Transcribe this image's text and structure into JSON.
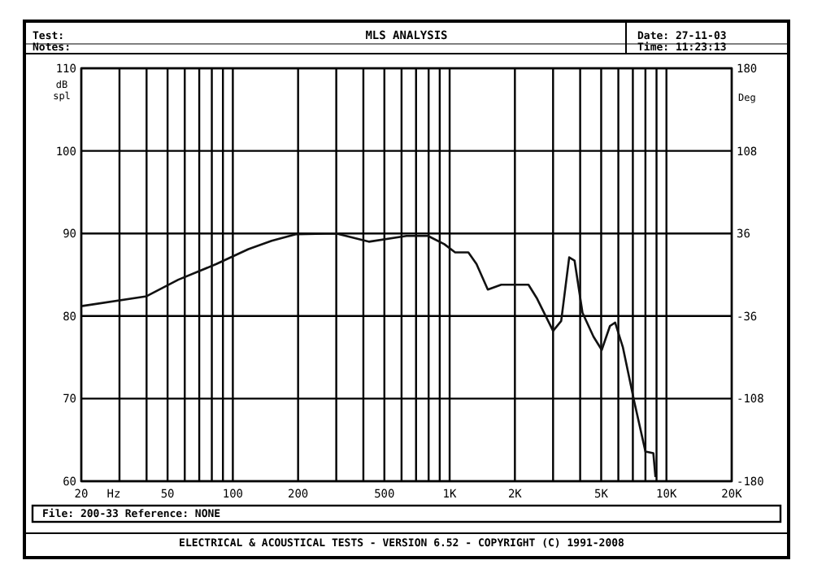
{
  "chart_data": {
    "type": "line",
    "title": "MLS ANALYSIS",
    "xlabel": "Hz",
    "ylabel": "dB spl",
    "y2label": "Deg",
    "annotations": [
      "Test:",
      "Notes:",
      "Date: 27-11-03",
      "Time: 11:23:13",
      "File: 200-33     Reference: NONE",
      "ELECTRICAL & ACOUSTICAL TESTS  -  VERSION 6.52  -  COPYRIGHT (C) 1991-2008"
    ],
    "log": "x",
    "grid": true,
    "line_style": "solid",
    "xlim": [
      20,
      20000
    ],
    "xticks": [
      20,
      {
        "value": 30,
        "label": null
      },
      {
        "value": 40,
        "label": null
      },
      50,
      {
        "value": 60,
        "label": null
      },
      {
        "value": 70,
        "label": null
      },
      {
        "value": 80,
        "label": null
      },
      {
        "value": 90,
        "label": null
      },
      100,
      200,
      {
        "value": 300,
        "label": null
      },
      {
        "value": 400,
        "label": null
      },
      500,
      {
        "value": 600,
        "label": null
      },
      {
        "value": 700,
        "label": null
      },
      {
        "value": 800,
        "label": null
      },
      {
        "value": 900,
        "label": null
      },
      {
        "value": 1000,
        "label": "1K"
      },
      {
        "value": 2000,
        "label": "2K"
      },
      {
        "value": 3000,
        "label": null
      },
      {
        "value": 4000,
        "label": null
      },
      {
        "value": 5000,
        "label": "5K"
      },
      {
        "value": 6000,
        "label": null
      },
      {
        "value": 7000,
        "label": null
      },
      {
        "value": 8000,
        "label": null
      },
      {
        "value": 9000,
        "label": null
      },
      {
        "value": 10000,
        "label": "10K"
      },
      {
        "value": 20000,
        "label": "20K"
      }
    ],
    "ylim": [
      60,
      110
    ],
    "yticks": [
      60,
      70,
      80,
      90,
      100,
      110
    ],
    "y2lim": [
      -180,
      180
    ],
    "y2ticks": [
      -180,
      -108,
      -36,
      36,
      108,
      180
    ],
    "series": [
      {
        "color": "#111111",
        "x": [
          20,
          40,
          56,
          84,
          118,
          151,
          195,
          300,
          424,
          632,
          795,
          945,
          1060,
          1220,
          1330,
          1500,
          1730,
          2310,
          2520,
          3000,
          3270,
          3560,
          3770,
          4100,
          4610,
          5030,
          5490,
          5800,
          6300,
          7110,
          8000,
          8700,
          8900
        ],
        "values": [
          81.2,
          82.4,
          84.4,
          86.3,
          88.1,
          89.1,
          89.9,
          90,
          89,
          89.7,
          89.7,
          88.7,
          87.7,
          87.7,
          86.3,
          83.2,
          83.8,
          83.8,
          82.2,
          78.2,
          79.4,
          87.1,
          86.7,
          80.4,
          77.5,
          75.9,
          78.8,
          79.2,
          76.2,
          69.6,
          63.6,
          63.4,
          60.5
        ]
      }
    ]
  }
}
